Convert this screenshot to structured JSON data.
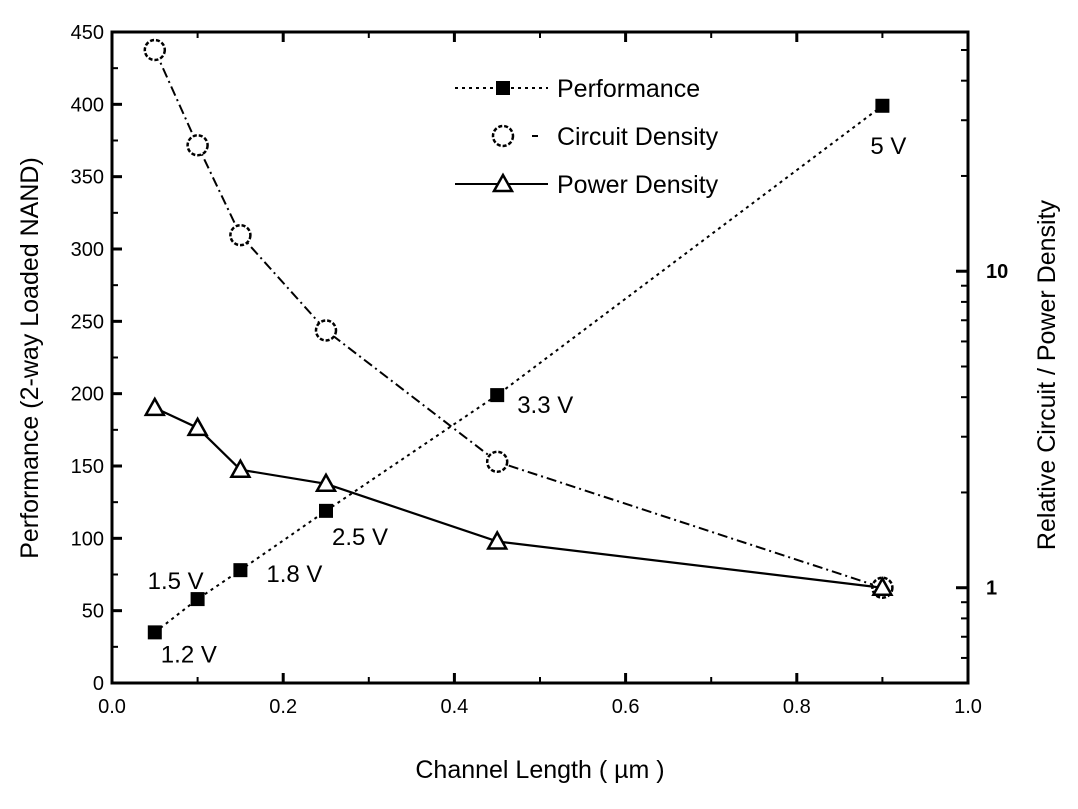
{
  "chart_data": {
    "type": "line",
    "xlabel": "Channel Length ( µm )",
    "ylabel": "Performance (2-way Loaded NAND)",
    "y2label": "Relative Circuit / Power Density",
    "xlim": [
      0.0,
      1.0
    ],
    "ylim": [
      0,
      450
    ],
    "y2lim": [
      0.5,
      57
    ],
    "y2scale": "log",
    "xticks": [
      "0.0",
      "0.2",
      "0.4",
      "0.6",
      "0.8",
      "1.0"
    ],
    "yticks": [
      "0",
      "50",
      "100",
      "150",
      "200",
      "250",
      "300",
      "350",
      "400",
      "450"
    ],
    "y2ticks": [
      "1",
      "10"
    ],
    "grid": false,
    "legend_position": "top-right",
    "x": [
      0.05,
      0.1,
      0.15,
      0.25,
      0.45,
      0.9
    ],
    "series": [
      {
        "name": "Performance",
        "axis": "left",
        "marker": "filled-square",
        "line": "dotted",
        "values": [
          35,
          58,
          78,
          119,
          199,
          399
        ],
        "labels": [
          "1.2 V",
          "1.5 V",
          "1.8 V",
          "2.5 V",
          "3.3 V",
          "5 V"
        ]
      },
      {
        "name": "Circuit Density",
        "axis": "right",
        "marker": "open-circle",
        "line": "dash-dot",
        "values": [
          50,
          25,
          13,
          6.5,
          2.5,
          1
        ]
      },
      {
        "name": "Power Density",
        "axis": "right",
        "marker": "open-triangle",
        "line": "solid",
        "values": [
          3.7,
          3.2,
          2.36,
          2.13,
          1.4,
          1
        ]
      }
    ],
    "colors": {
      "ink": "#000000",
      "background": "#ffffff"
    }
  }
}
